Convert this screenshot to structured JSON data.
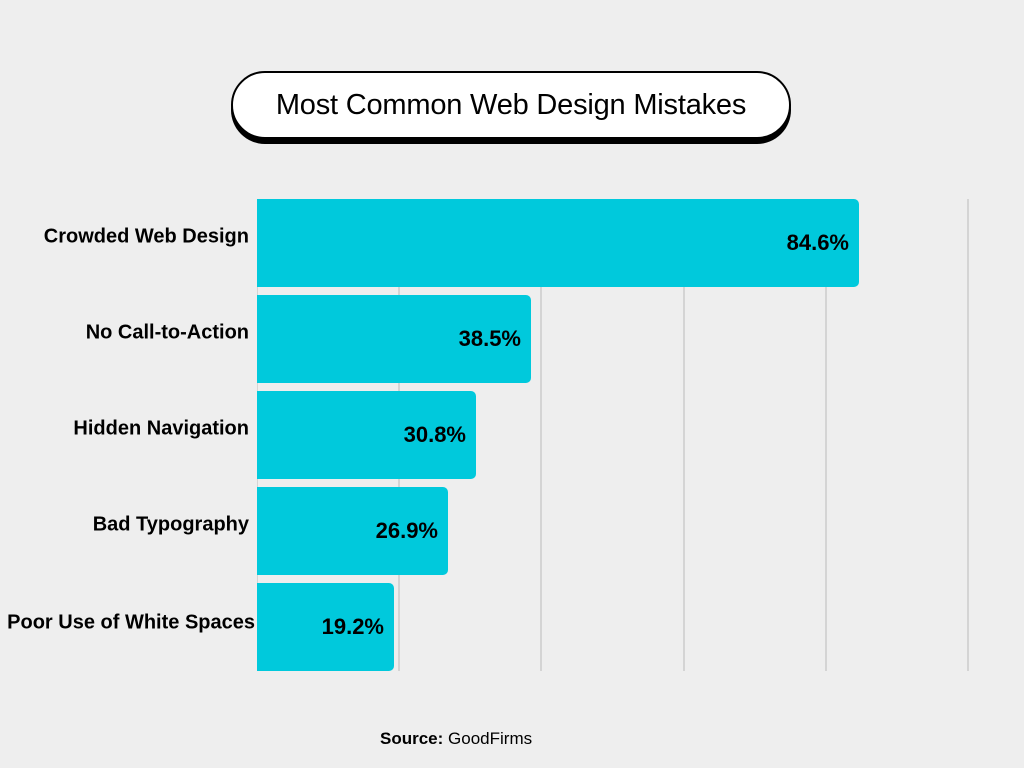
{
  "title": "Most Common Web Design Mistakes",
  "source": {
    "label": "Source:",
    "value": "GoodFirms"
  },
  "colors": {
    "bar": "#00c9dc",
    "background": "#eeeeee",
    "grid": "#d4d4d4",
    "text": "#000000"
  },
  "bars": [
    {
      "label": "Crowded Web Design",
      "value": 84.6,
      "display": "84.6%"
    },
    {
      "label": "No Call-to-Action",
      "value": 38.5,
      "display": "38.5%"
    },
    {
      "label": "Hidden Navigation",
      "value": 30.8,
      "display": "30.8%"
    },
    {
      "label": "Bad Typography",
      "value": 26.9,
      "display": "26.9%"
    },
    {
      "label": "Poor Use of White Spaces",
      "value": 19.2,
      "display": "19.2%"
    }
  ],
  "chart_data": {
    "type": "bar",
    "orientation": "horizontal",
    "title": "Most Common Web Design Mistakes",
    "categories": [
      "Crowded Web Design",
      "No Call-to-Action",
      "Hidden Navigation",
      "Bad Typography",
      "Poor Use of White Spaces"
    ],
    "values": [
      84.6,
      38.5,
      30.8,
      26.9,
      19.2
    ],
    "value_labels": [
      "84.6%",
      "38.5%",
      "30.8%",
      "26.9%",
      "19.2%"
    ],
    "xlabel": "",
    "ylabel": "",
    "xlim": [
      0,
      100
    ],
    "gridlines_at": [
      0,
      20,
      40,
      60,
      80,
      100
    ],
    "grid": true,
    "tick_labels_shown": false,
    "legend": null,
    "annotation": "Source: GoodFirms"
  }
}
